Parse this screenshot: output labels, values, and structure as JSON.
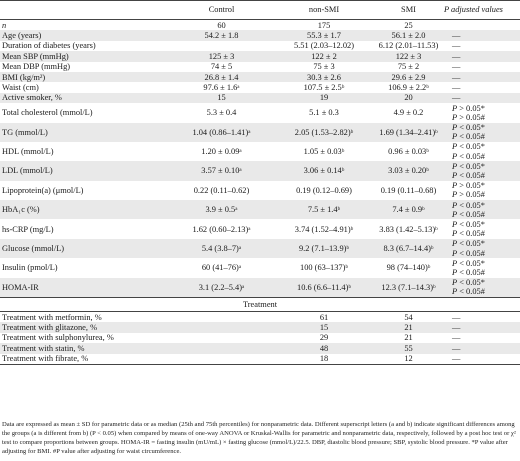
{
  "header": [
    "",
    "Control",
    "non-SMI",
    "SMI",
    "P adjusted values"
  ],
  "rows": [
    {
      "label": "n",
      "vals": [
        "60",
        "175",
        "25"
      ],
      "p": [],
      "shade": false,
      "italic": true
    },
    {
      "label": "Age (years)",
      "vals": [
        "54.2 ± 1.8",
        "55.3 ± 1.7",
        "56.1 ± 2.0"
      ],
      "p": [
        "—"
      ],
      "shade": true
    },
    {
      "label": "Duration of diabetes (years)",
      "vals": [
        "",
        "5.51 (2.03–12.02)",
        "6.12 (2.01–11.53)"
      ],
      "p": [
        "—"
      ],
      "shade": false
    },
    {
      "label": "Mean SBP (mmHg)",
      "vals": [
        "125 ± 3",
        "122 ± 2",
        "122 ± 3"
      ],
      "p": [
        "—"
      ],
      "shade": true
    },
    {
      "label": "Mean DBP (mmHg)",
      "vals": [
        "74 ± 5",
        "75 ± 3",
        "75 ± 2"
      ],
      "p": [
        "—"
      ],
      "shade": false
    },
    {
      "label": "BMI (kg/m²)",
      "vals": [
        "26.8 ± 1.4",
        "30.3 ± 2.6",
        "29.6 ± 2.9"
      ],
      "p": [
        "—"
      ],
      "shade": true
    },
    {
      "label": "Waist (cm)",
      "vals": [
        "97.6 ± 1.6ᵃ",
        "107.5 ± 2.5ᵇ",
        "106.9 ± 2.2ᵇ"
      ],
      "p": [
        "—"
      ],
      "shade": false
    },
    {
      "label": "Active smoker, %",
      "vals": [
        "15",
        "19",
        "20"
      ],
      "p": [
        "—"
      ],
      "shade": true
    },
    {
      "label": "Total cholesterol (mmol/L)",
      "vals": [
        "5.3 ± 0.4",
        "5.1 ± 0.3",
        "4.9 ± 0.2"
      ],
      "p": [
        "P > 0.05*",
        "P > 0.05#"
      ],
      "shade": false
    },
    {
      "label": "TG (mmol/L)",
      "vals": [
        "1.04 (0.86–1.41)ᵃ",
        "2.05 (1.53–2.82)ᵇ",
        "1.69 (1.34–2.41)ᵇ"
      ],
      "p": [
        "P < 0.05*",
        "P < 0.05#"
      ],
      "shade": true
    },
    {
      "label": "HDL (mmol/L)",
      "vals": [
        "1.20 ± 0.09ᵃ",
        "1.05 ± 0.03ᵇ",
        "0.96 ± 0.03ᵇ"
      ],
      "p": [
        "P < 0.05*",
        "P < 0.05#"
      ],
      "shade": false
    },
    {
      "label": "LDL (mmol/L)",
      "vals": [
        "3.57 ± 0.10ᵃ",
        "3.06 ± 0.14ᵇ",
        "3.03 ± 0.20ᵇ"
      ],
      "p": [
        "P < 0.05*",
        "P < 0.05#"
      ],
      "shade": true
    },
    {
      "label": "Lipoprotein(a) (μmol/L)",
      "vals": [
        "0.22 (0.11–0.62)",
        "0.19 (0.12–0.69)",
        "0.19 (0.11–0.68)"
      ],
      "p": [
        "P > 0.05*",
        "P > 0.05#"
      ],
      "shade": false
    },
    {
      "label": "HbA₁c (%)",
      "vals": [
        "3.9 ± 0.5ᵃ",
        "7.5 ± 1.4ᵇ",
        "7.4 ± 0.9ᵇ"
      ],
      "p": [
        "P < 0.05*",
        "P < 0.05#"
      ],
      "shade": true
    },
    {
      "label": "hs-CRP (mg/L)",
      "vals": [
        "1.62 (0.60–2.13)ᵃ",
        "3.74 (1.52–4.91)ᵇ",
        "3.83 (1.42–5.13)ᵇ"
      ],
      "p": [
        "P < 0.05*",
        "P < 0.05#"
      ],
      "shade": false
    },
    {
      "label": "Glucose (mmol/L)",
      "vals": [
        "5.4 (3.8–7)ᵃ",
        "9.2 (7.1–13.9)ᵇ",
        "8.3 (6.7–14.4)ᵇ"
      ],
      "p": [
        "P < 0.05*",
        "P < 0.05#"
      ],
      "shade": true
    },
    {
      "label": "Insulin (pmol/L)",
      "vals": [
        "60 (41–76)ᵃ",
        "100 (63–137)ᵇ",
        "98 (74–140)ᵇ"
      ],
      "p": [
        "P < 0.05*",
        "P < 0.05#"
      ],
      "shade": false
    },
    {
      "label": "HOMA-IR",
      "vals": [
        "3.1 (2.2–5.4)ᵃ",
        "10.6 (6.6–11.4)ᵇ",
        "12.3 (7.1–14.3)ᵇ"
      ],
      "p": [
        "P < 0.05*",
        "P < 0.05#"
      ],
      "shade": true
    }
  ],
  "treatment_title": "Treatment",
  "treatment_rows": [
    {
      "label": "Treatment with metformin, %",
      "vals": [
        "",
        "61",
        "54"
      ],
      "p": [
        "—"
      ],
      "shade": false
    },
    {
      "label": "Treatment with glitazone, %",
      "vals": [
        "",
        "15",
        "21"
      ],
      "p": [
        "—"
      ],
      "shade": true
    },
    {
      "label": "Treatment with sulphonylurea, %",
      "vals": [
        "",
        "29",
        "21"
      ],
      "p": [
        "—"
      ],
      "shade": false
    },
    {
      "label": "Treatment with statin, %",
      "vals": [
        "",
        "48",
        "55"
      ],
      "p": [
        "—"
      ],
      "shade": true
    },
    {
      "label": "Treatment with fibrate, %",
      "vals": [
        "",
        "18",
        "12"
      ],
      "p": [
        "—"
      ],
      "shade": false
    }
  ],
  "footnote": "Data are expressed as mean ± SD for parametric data or as median (25th and 75th percentiles) for nonparametric data. Different superscript letters (a and b) indicate significant differences among the groups (a is different from b) (P < 0.05) when compared by means of one-way ANOVA or Kruskal-Wallis for parametric and nonparametric data, respectively, followed by a post hoc test or χ² test to compare proportions between groups. HOMA-IR = fasting insulin (mU/mL) × fasting glucose (mmol/L)/22.5. DBP, diastolic blood pressure; SBP, systolic blood pressure. *P value after adjusting for BMI. #P value after adjusting for waist circumference."
}
